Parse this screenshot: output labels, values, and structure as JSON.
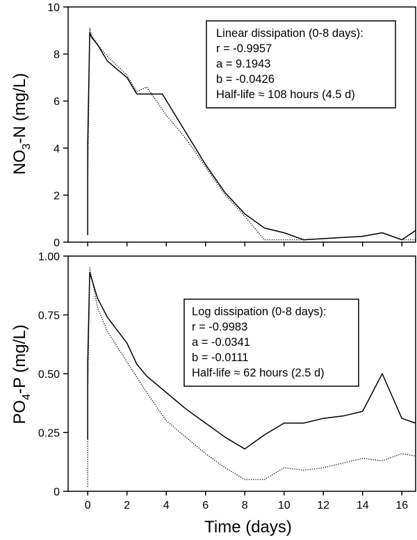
{
  "chart_data": [
    {
      "type": "line",
      "ylabel_main": "NO",
      "ylabel_sub": "3",
      "ylabel_rest": "-N (mg/L)",
      "ylim": [
        0,
        10
      ],
      "yticks": [
        0,
        2,
        4,
        6,
        8,
        10
      ],
      "ytick_labels": [
        "0",
        "2",
        "4",
        "6",
        "8",
        "10"
      ],
      "xlim": [
        -1,
        16.7
      ],
      "grid": false,
      "annotation": [
        "Linear dissipation (0-8 days):",
        "r = -0.9957",
        "a = 9.1943",
        "b = -0.0426",
        "Half-life ≈ 108 hours (4.5 d)"
      ],
      "series": [
        {
          "style": "solid",
          "x": [
            0,
            0,
            0.1,
            0.2,
            0.5,
            1,
            2,
            2.5,
            3.2,
            3.8,
            6,
            7,
            8,
            9,
            10,
            11,
            12,
            13,
            14,
            15,
            16,
            16.7
          ],
          "y": [
            0.3,
            4.2,
            8.9,
            8.7,
            8.4,
            7.7,
            7.0,
            6.3,
            6.3,
            6.3,
            3.3,
            2.1,
            1.2,
            0.6,
            0.4,
            0.1,
            0.15,
            0.2,
            0.25,
            0.4,
            0.1,
            0.5
          ]
        },
        {
          "style": "dotted",
          "x": [
            0,
            0,
            0.1,
            0.2,
            0.5,
            1,
            2,
            2.5,
            3,
            3.5,
            4,
            5,
            6,
            7,
            8,
            9,
            10,
            11,
            12,
            13,
            14,
            15,
            16,
            16.7
          ],
          "y": [
            0.3,
            2.5,
            9.1,
            8.8,
            8.4,
            7.9,
            7.1,
            6.4,
            6.6,
            6.0,
            5.4,
            4.4,
            3.2,
            2.0,
            1.1,
            0.1,
            0.1,
            0.1,
            0.15,
            0.2,
            0.25,
            0.4,
            0.1,
            0.1
          ]
        }
      ]
    },
    {
      "type": "line",
      "ylabel_main": "PO",
      "ylabel_sub": "4",
      "ylabel_rest": "-P (mg/L)",
      "ylim": [
        0,
        1
      ],
      "yticks": [
        0,
        0.25,
        0.5,
        0.75,
        1.0
      ],
      "ytick_labels": [
        "0",
        "0.25",
        "0.50",
        "0.75",
        "1.00"
      ],
      "xlim": [
        -1,
        16.7
      ],
      "xticks": [
        0,
        2,
        4,
        6,
        8,
        10,
        12,
        14,
        16
      ],
      "xtick_labels": [
        "0",
        "2",
        "4",
        "6",
        "8",
        "10",
        "12",
        "14",
        "16"
      ],
      "xlabel": "Time (days)",
      "grid": false,
      "annotation": [
        "Log dissipation (0-8 days):",
        "r = -0.9983",
        "a = -0.0341",
        "b = -0.0111",
        "Half-life ≈ 62 hours (2.5 d)"
      ],
      "series": [
        {
          "style": "solid",
          "x": [
            0,
            0,
            0.1,
            0.5,
            1,
            2,
            2.5,
            3,
            4,
            5,
            6,
            7,
            8,
            9,
            10,
            11,
            12,
            13,
            14,
            15,
            16,
            16.7
          ],
          "y": [
            0.22,
            0.55,
            0.93,
            0.82,
            0.74,
            0.63,
            0.54,
            0.49,
            0.42,
            0.35,
            0.29,
            0.23,
            0.18,
            0.24,
            0.29,
            0.29,
            0.31,
            0.32,
            0.34,
            0.5,
            0.31,
            0.29
          ]
        },
        {
          "style": "dotted",
          "x": [
            0,
            0,
            0.1,
            0.5,
            1,
            2,
            3,
            4,
            5,
            6,
            7,
            8,
            9,
            10,
            11,
            12,
            13,
            14,
            15,
            16,
            16.7
          ],
          "y": [
            0.02,
            0.4,
            0.95,
            0.78,
            0.68,
            0.55,
            0.42,
            0.3,
            0.23,
            0.16,
            0.1,
            0.05,
            0.05,
            0.1,
            0.09,
            0.1,
            0.12,
            0.14,
            0.13,
            0.16,
            0.15
          ]
        }
      ]
    }
  ]
}
